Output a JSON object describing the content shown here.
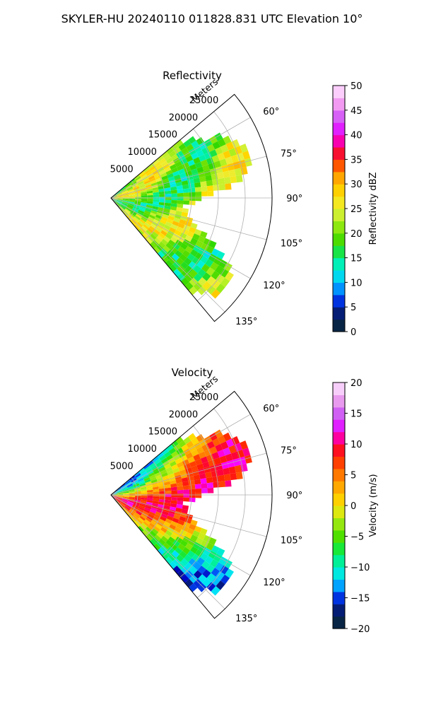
{
  "figure_title": "SKYLER-HU  20240110  011828.831 UTC Elevation 10°",
  "chart_data": [
    {
      "type": "heatmap",
      "subtype": "polar-sector",
      "title": "Reflectivity",
      "range_axis_label": "Meters",
      "range_ticks": [
        5000,
        10000,
        15000,
        20000,
        25000
      ],
      "range_tick_labels": [
        "5000",
        "10000",
        "15000",
        "20000",
        "25000"
      ],
      "range_max": 30000,
      "azimuth_range_deg": [
        50,
        140
      ],
      "azimuth_ticks_deg": [
        60,
        75,
        90,
        105,
        120,
        135
      ],
      "azimuth_tick_labels": [
        "60°",
        "75°",
        "90°",
        "105°",
        "120°",
        "135°"
      ],
      "grid": true,
      "colorbar": {
        "label": "Reflectivity dBZ",
        "min": 0,
        "max": 50,
        "ticks": [
          0,
          5,
          10,
          15,
          20,
          25,
          30,
          35,
          40,
          45,
          50
        ],
        "tick_labels": [
          "0",
          "5",
          "10",
          "15",
          "20",
          "25",
          "30",
          "35",
          "40",
          "45",
          "50"
        ]
      },
      "colormap": [
        [
          0,
          "#081060"
        ],
        [
          2.5,
          "#0a3a2a"
        ],
        [
          5,
          "#0000c0"
        ],
        [
          7.5,
          "#0066ff"
        ],
        [
          10,
          "#00c0ff"
        ],
        [
          12.5,
          "#00f0e0"
        ],
        [
          15,
          "#00f090"
        ],
        [
          17.5,
          "#30d800"
        ],
        [
          20,
          "#6ae000"
        ],
        [
          22.5,
          "#b0f020"
        ],
        [
          25,
          "#e8f040"
        ],
        [
          27.5,
          "#ffe000"
        ],
        [
          30,
          "#ffc000"
        ],
        [
          32.5,
          "#ff8c00"
        ],
        [
          35,
          "#ff2000"
        ],
        [
          37.5,
          "#f00060"
        ],
        [
          40,
          "#ff00ff"
        ],
        [
          42.5,
          "#c040ff"
        ],
        [
          45,
          "#ee80ee"
        ],
        [
          50,
          "#ffe8ff"
        ]
      ],
      "field_mean": 21,
      "field_note": ""
    },
    {
      "type": "heatmap",
      "subtype": "polar-sector",
      "title": "Velocity",
      "range_axis_label": "Meters",
      "range_ticks": [
        5000,
        10000,
        15000,
        20000,
        25000
      ],
      "range_tick_labels": [
        "5000",
        "10000",
        "15000",
        "20000",
        "25000"
      ],
      "range_max": 30000,
      "azimuth_range_deg": [
        50,
        140
      ],
      "azimuth_ticks_deg": [
        60,
        75,
        90,
        105,
        120,
        135
      ],
      "azimuth_tick_labels": [
        "60°",
        "75°",
        "90°",
        "105°",
        "120°",
        "135°"
      ],
      "grid": true,
      "colorbar": {
        "label": "Velocity (m/s)",
        "min": -20,
        "max": 20,
        "ticks": [
          -20,
          -15,
          -10,
          -5,
          0,
          5,
          10,
          15,
          20
        ],
        "tick_labels": [
          "−20",
          "−15",
          "−10",
          "−5",
          "0",
          "5",
          "10",
          "15",
          "20"
        ]
      },
      "colormap": [
        [
          -20,
          "#081060"
        ],
        [
          -18,
          "#0a3a2a"
        ],
        [
          -16,
          "#0000c0"
        ],
        [
          -14,
          "#0066ff"
        ],
        [
          -12,
          "#00e0ff"
        ],
        [
          -10,
          "#00f0c0"
        ],
        [
          -8,
          "#00f070"
        ],
        [
          -6,
          "#30e000"
        ],
        [
          -4,
          "#70e000"
        ],
        [
          -2,
          "#b8f020"
        ],
        [
          0,
          "#ffe000"
        ],
        [
          2,
          "#ffc000"
        ],
        [
          4,
          "#ff9000"
        ],
        [
          6,
          "#ff6000"
        ],
        [
          8,
          "#ff2000"
        ],
        [
          10,
          "#ff0040"
        ],
        [
          12,
          "#ff00ff"
        ],
        [
          14,
          "#c040ff"
        ],
        [
          16,
          "#e080e8"
        ],
        [
          20,
          "#ffe8ff"
        ]
      ],
      "field_mean": -2,
      "field_note": ""
    }
  ]
}
